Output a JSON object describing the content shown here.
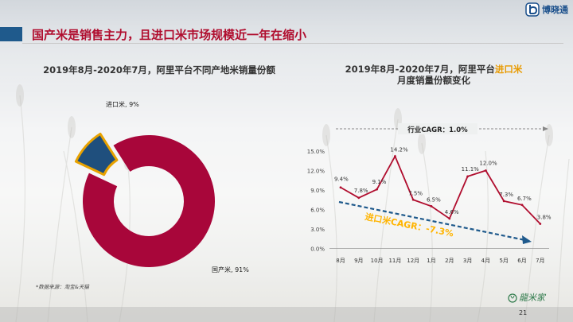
{
  "logo": {
    "text": "博晓通"
  },
  "headline": "国产米是销售主力，且进口米市场规模近一年在缩小",
  "left_chart_title": "2019年8月-2020年7月，阿里平台不同产地米销量份额",
  "right_chart_title": {
    "part1": "2019年8月-2020年7月，阿里平台",
    "highlight": "进口米",
    "part2": "月度销量份额变化"
  },
  "source_note": "*数据来源：淘宝&天猫",
  "page_number": "21",
  "brand_logo_text": "龍米家",
  "colors": {
    "domestic": "#a8063a",
    "imported": "#1f4f7d",
    "imported_border": "#e8a200",
    "line": "#b00d2e",
    "trend_arrow": "#1f5a8c",
    "trend_label": "#ffb400",
    "headline": "#b00d2e"
  },
  "chart_data": [
    {
      "type": "pie",
      "variant": "donut",
      "title": "2019年8月-2020年7月，阿里平台不同产地米销量份额",
      "slices": [
        {
          "label": "国产米",
          "value": 91,
          "display": "国产米, 91%"
        },
        {
          "label": "进口米",
          "value": 9,
          "display": "进口米, 9%",
          "exploded": true
        }
      ]
    },
    {
      "type": "line",
      "title": "2019年8月-2020年7月，阿里平台进口米月度销量份额变化",
      "categories": [
        "8月",
        "9月",
        "10月",
        "11月",
        "12月",
        "1月",
        "2月",
        "3月",
        "4月",
        "5月",
        "6月",
        "7月"
      ],
      "series": [
        {
          "values": [
            9.4,
            7.8,
            9.1,
            14.2,
            7.5,
            6.5,
            4.6,
            11.1,
            12.0,
            7.3,
            6.7,
            3.8
          ],
          "labels": [
            "9.4%",
            "7.8%",
            "9.1%",
            "14.2%",
            "7.5%",
            "6.5%",
            "4.6%",
            "11.1%",
            "12.0%",
            "7.3%",
            "6.7%",
            "3.8%"
          ]
        }
      ],
      "ylim": [
        0,
        15
      ],
      "yticks": [
        "0.0%",
        "3.0%",
        "6.0%",
        "9.0%",
        "12.0%",
        "15.0%"
      ],
      "grid": false,
      "industry_cagr": "行业CAGR：1.0%",
      "trend_label": "进口米CAGR：-7.3%"
    }
  ]
}
